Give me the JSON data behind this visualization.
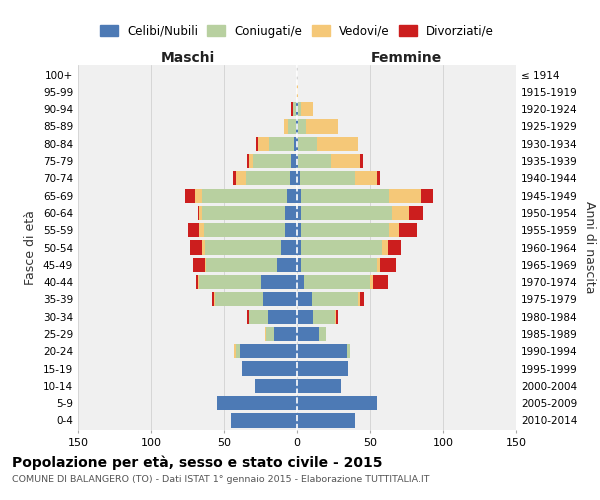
{
  "age_groups": [
    "100+",
    "95-99",
    "90-94",
    "85-89",
    "80-84",
    "75-79",
    "70-74",
    "65-69",
    "60-64",
    "55-59",
    "50-54",
    "45-49",
    "40-44",
    "35-39",
    "30-34",
    "25-29",
    "20-24",
    "15-19",
    "10-14",
    "5-9",
    "0-4"
  ],
  "birth_years": [
    "≤ 1914",
    "1915-1919",
    "1920-1924",
    "1925-1929",
    "1930-1934",
    "1935-1939",
    "1940-1944",
    "1945-1949",
    "1950-1954",
    "1955-1959",
    "1960-1964",
    "1965-1969",
    "1970-1974",
    "1975-1979",
    "1980-1984",
    "1985-1989",
    "1990-1994",
    "1995-1999",
    "2000-2004",
    "2005-2009",
    "2010-2014"
  ],
  "colors": {
    "celibe": "#4d7ab5",
    "coniugato": "#b8d0a0",
    "vedovo": "#f5c878",
    "divorziato": "#cc1e1e"
  },
  "maschi": {
    "celibe": [
      0,
      0,
      1,
      1,
      2,
      4,
      5,
      7,
      8,
      8,
      11,
      14,
      25,
      23,
      20,
      16,
      39,
      38,
      29,
      55,
      45
    ],
    "coniugato": [
      0,
      0,
      2,
      5,
      17,
      26,
      30,
      58,
      57,
      56,
      52,
      48,
      42,
      33,
      13,
      5,
      3,
      0,
      0,
      0,
      0
    ],
    "vedovo": [
      0,
      0,
      0,
      3,
      8,
      3,
      7,
      5,
      2,
      3,
      2,
      1,
      1,
      1,
      0,
      1,
      1,
      0,
      0,
      0,
      0
    ],
    "divorziato": [
      0,
      0,
      1,
      0,
      1,
      1,
      2,
      7,
      1,
      8,
      8,
      8,
      1,
      1,
      1,
      0,
      0,
      0,
      0,
      0,
      0
    ]
  },
  "femmine": {
    "nubile": [
      0,
      0,
      1,
      1,
      1,
      1,
      2,
      3,
      3,
      3,
      3,
      3,
      5,
      10,
      11,
      15,
      34,
      35,
      30,
      55,
      40
    ],
    "coniugata": [
      0,
      0,
      2,
      5,
      13,
      22,
      38,
      60,
      62,
      60,
      55,
      52,
      45,
      32,
      15,
      5,
      2,
      0,
      0,
      0,
      0
    ],
    "vedova": [
      0,
      1,
      8,
      22,
      28,
      20,
      15,
      22,
      12,
      7,
      4,
      2,
      2,
      1,
      1,
      0,
      0,
      0,
      0,
      0,
      0
    ],
    "divorziata": [
      0,
      0,
      0,
      0,
      0,
      2,
      2,
      8,
      9,
      12,
      9,
      11,
      10,
      3,
      1,
      0,
      0,
      0,
      0,
      0,
      0
    ]
  },
  "xlim": 150,
  "title": "Popolazione per età, sesso e stato civile - 2015",
  "subtitle": "COMUNE DI BALANGERO (TO) - Dati ISTAT 1° gennaio 2015 - Elaborazione TUTTITALIA.IT",
  "xlabel_left": "Maschi",
  "xlabel_right": "Femmine",
  "ylabel_left": "Fasce di età",
  "ylabel_right": "Anni di nascita",
  "legend_labels": [
    "Celibi/Nubili",
    "Coniugati/e",
    "Vedovi/e",
    "Divorziati/e"
  ],
  "bg_color": "#f0f0f0",
  "grid_color": "#cccccc"
}
